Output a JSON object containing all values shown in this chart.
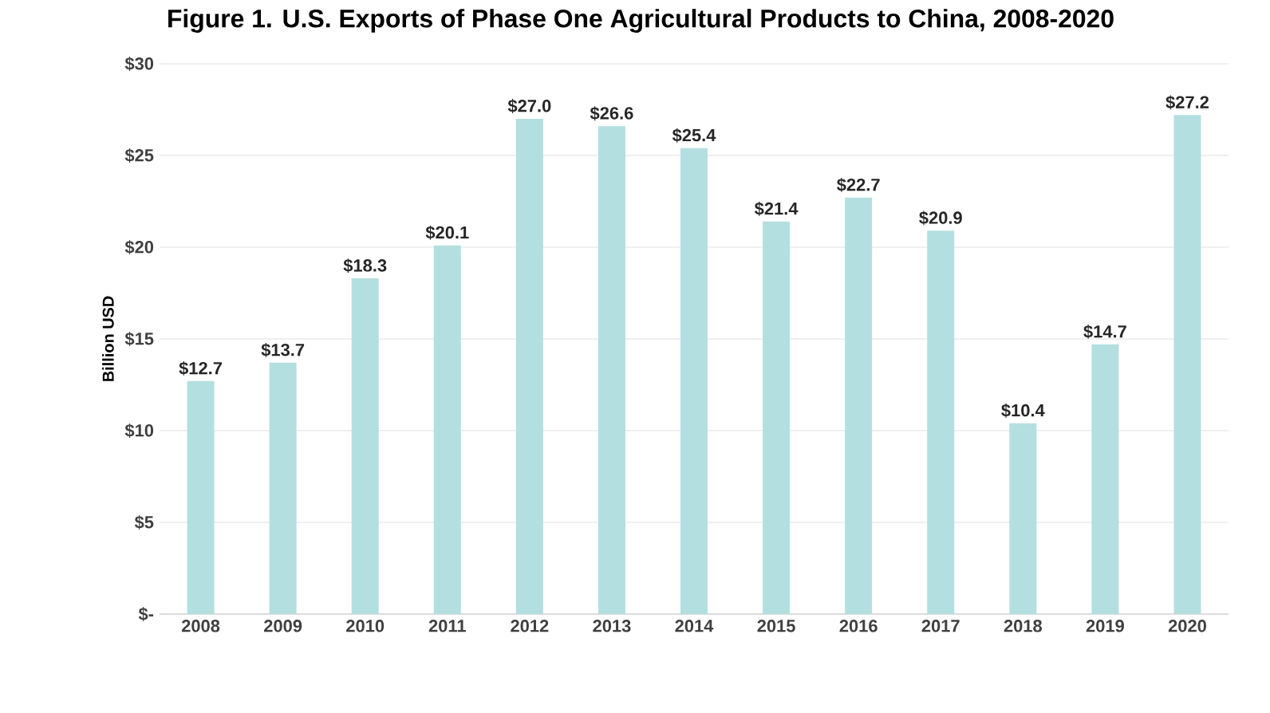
{
  "chart_data": {
    "type": "bar",
    "title": "Figure 1. U.S. Exports of Phase One Agricultural Products to China, 2008-2020",
    "ylabel": "Billion USD",
    "categories": [
      "2008",
      "2009",
      "2010",
      "2011",
      "2012",
      "2013",
      "2014",
      "2015",
      "2016",
      "2017",
      "2018",
      "2019",
      "2020"
    ],
    "values": [
      12.7,
      13.7,
      18.3,
      20.1,
      27.0,
      26.6,
      25.4,
      21.4,
      22.7,
      20.9,
      10.4,
      14.7,
      27.2
    ],
    "value_labels": [
      "$12.7",
      "$13.7",
      "$18.3",
      "$20.1",
      "$27.0",
      "$26.6",
      "$25.4",
      "$21.4",
      "$22.7",
      "$20.9",
      "$10.4",
      "$14.7",
      "$27.2"
    ],
    "color": "#b3dfe0",
    "ylim": [
      0,
      30
    ],
    "yticks": [
      {
        "value": 0,
        "label": "$-"
      },
      {
        "value": 5,
        "label": "$5"
      },
      {
        "value": 10,
        "label": "$10"
      },
      {
        "value": 15,
        "label": "$15"
      },
      {
        "value": 20,
        "label": "$20"
      },
      {
        "value": 25,
        "label": "$25"
      },
      {
        "value": 30,
        "label": "$30"
      }
    ],
    "grid": "y"
  }
}
